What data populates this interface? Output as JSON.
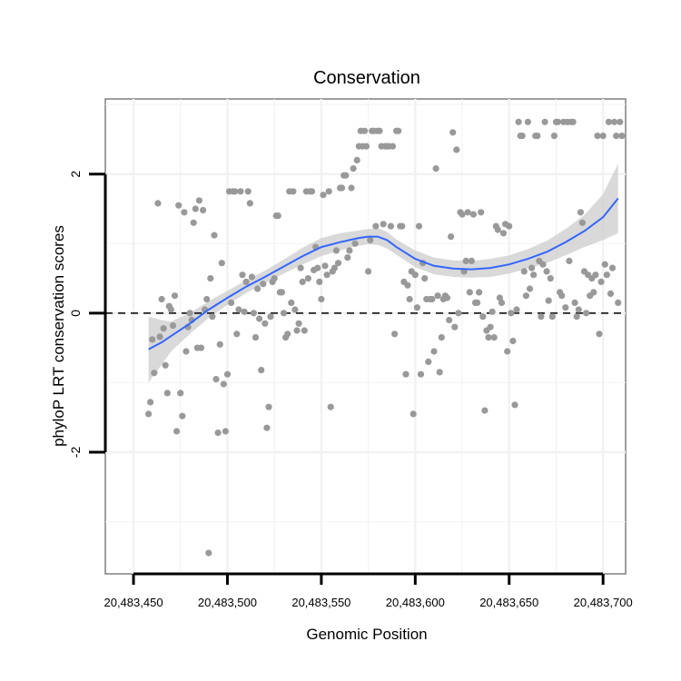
{
  "chart_data": {
    "type": "scatter",
    "title": "Conservation",
    "xlabel": "Genomic Position",
    "ylabel": "phyloP LRT conservation scores",
    "xlim": [
      20483435,
      20483712
    ],
    "ylim": [
      -3.75,
      3.08
    ],
    "x_ticks": [
      20483450,
      20483500,
      20483550,
      20483600,
      20483650,
      20483700
    ],
    "x_tick_labels": [
      "20,483,450",
      "20,483,500",
      "20,483,550",
      "20,483,600",
      "20,483,650",
      "20,483,700"
    ],
    "y_ticks": [
      -2,
      0,
      2
    ],
    "y_tick_labels": [
      "-2",
      "0",
      "2"
    ],
    "grid": true,
    "reference_line": {
      "y": 0,
      "style": "dashed"
    },
    "colors": {
      "points": "#999999",
      "smooth": "#3366ff",
      "band": "#cccccc",
      "panel_border": "#7f7f7f",
      "grid": "#f2f2f2"
    },
    "points": [
      [
        20483458,
        -1.45
      ],
      [
        20483459,
        -1.28
      ],
      [
        20483460,
        -0.38
      ],
      [
        20483461,
        -0.86
      ],
      [
        20483463,
        1.58
      ],
      [
        20483464,
        -0.34
      ],
      [
        20483465,
        0.2
      ],
      [
        20483466,
        -0.22
      ],
      [
        20483467,
        -0.75
      ],
      [
        20483468,
        -1.15
      ],
      [
        20483469,
        0.1
      ],
      [
        20483470,
        0.05
      ],
      [
        20483471,
        -0.18
      ],
      [
        20483472,
        0.25
      ],
      [
        20483473,
        -1.7
      ],
      [
        20483474,
        1.55
      ],
      [
        20483475,
        -1.15
      ],
      [
        20483476,
        -1.48
      ],
      [
        20483477,
        1.45
      ],
      [
        20483478,
        -0.55
      ],
      [
        20483479,
        -0.2
      ],
      [
        20483480,
        0.0
      ],
      [
        20483481,
        -0.1
      ],
      [
        20483482,
        1.3
      ],
      [
        20483483,
        1.5
      ],
      [
        20483484,
        -0.5
      ],
      [
        20483485,
        1.62
      ],
      [
        20483486,
        -0.5
      ],
      [
        20483487,
        1.48
      ],
      [
        20483488,
        0.05
      ],
      [
        20483489,
        0.2
      ],
      [
        20483490,
        -3.45
      ],
      [
        20483491,
        0.5
      ],
      [
        20483492,
        -0.05
      ],
      [
        20483493,
        1.12
      ],
      [
        20483494,
        -0.95
      ],
      [
        20483495,
        -1.72
      ],
      [
        20483496,
        -0.45
      ],
      [
        20483497,
        0.72
      ],
      [
        20483498,
        -1.02
      ],
      [
        20483499,
        -1.7
      ],
      [
        20483500,
        -0.88
      ],
      [
        20483501,
        1.75
      ],
      [
        20483502,
        0.15
      ],
      [
        20483503,
        1.75
      ],
      [
        20483504,
        1.75
      ],
      [
        20483505,
        -0.3
      ],
      [
        20483506,
        0.05
      ],
      [
        20483507,
        1.75
      ],
      [
        20483508,
        0.55
      ],
      [
        20483509,
        0.02
      ],
      [
        20483510,
        0.45
      ],
      [
        20483511,
        1.75
      ],
      [
        20483512,
        1.58
      ],
      [
        20483513,
        0.52
      ],
      [
        20483514,
        0.0
      ],
      [
        20483515,
        -0.35
      ],
      [
        20483516,
        0.35
      ],
      [
        20483517,
        -0.08
      ],
      [
        20483518,
        -0.82
      ],
      [
        20483519,
        0.42
      ],
      [
        20483520,
        -0.15
      ],
      [
        20483521,
        -1.65
      ],
      [
        20483522,
        -1.35
      ],
      [
        20483523,
        -0.05
      ],
      [
        20483524,
        0.45
      ],
      [
        20483525,
        0.5
      ],
      [
        20483526,
        1.4
      ],
      [
        20483527,
        1.4
      ],
      [
        20483528,
        0.3
      ],
      [
        20483529,
        0.3
      ],
      [
        20483530,
        0.0
      ],
      [
        20483531,
        -0.35
      ],
      [
        20483532,
        -0.3
      ],
      [
        20483533,
        1.75
      ],
      [
        20483534,
        0.15
      ],
      [
        20483535,
        1.75
      ],
      [
        20483536,
        0.05
      ],
      [
        20483537,
        -0.25
      ],
      [
        20483538,
        -0.15
      ],
      [
        20483539,
        0.65
      ],
      [
        20483540,
        0.45
      ],
      [
        20483541,
        -0.25
      ],
      [
        20483542,
        1.75
      ],
      [
        20483543,
        0.5
      ],
      [
        20483544,
        1.75
      ],
      [
        20483545,
        1.75
      ],
      [
        20483546,
        0.62
      ],
      [
        20483547,
        0.95
      ],
      [
        20483548,
        0.65
      ],
      [
        20483549,
        0.45
      ],
      [
        20483550,
        0.2
      ],
      [
        20483551,
        1.7
      ],
      [
        20483552,
        0.68
      ],
      [
        20483553,
        0.55
      ],
      [
        20483554,
        1.75
      ],
      [
        20483555,
        -1.35
      ],
      [
        20483556,
        0.6
      ],
      [
        20483557,
        0.65
      ],
      [
        20483558,
        0.9
      ],
      [
        20483559,
        0.72
      ],
      [
        20483560,
        1.8
      ],
      [
        20483561,
        1.8
      ],
      [
        20483562,
        1.98
      ],
      [
        20483563,
        1.98
      ],
      [
        20483564,
        0.8
      ],
      [
        20483565,
        0.9
      ],
      [
        20483566,
        1.8
      ],
      [
        20483567,
        2.08
      ],
      [
        20483568,
        1.0
      ],
      [
        20483569,
        2.2
      ],
      [
        20483570,
        2.4
      ],
      [
        20483571,
        2.62
      ],
      [
        20483572,
        2.4
      ],
      [
        20483573,
        2.62
      ],
      [
        20483574,
        2.4
      ],
      [
        20483575,
        0.6
      ],
      [
        20483576,
        1.05
      ],
      [
        20483577,
        2.62
      ],
      [
        20483578,
        2.62
      ],
      [
        20483579,
        1.25
      ],
      [
        20483580,
        2.62
      ],
      [
        20483581,
        2.62
      ],
      [
        20483582,
        2.4
      ],
      [
        20483583,
        1.28
      ],
      [
        20483584,
        2.4
      ],
      [
        20483585,
        2.4
      ],
      [
        20483586,
        2.4
      ],
      [
        20483587,
        1.25
      ],
      [
        20483588,
        2.4
      ],
      [
        20483589,
        -0.3
      ],
      [
        20483590,
        2.62
      ],
      [
        20483591,
        2.62
      ],
      [
        20483592,
        1.25
      ],
      [
        20483593,
        1.25
      ],
      [
        20483594,
        0.45
      ],
      [
        20483595,
        -0.88
      ],
      [
        20483596,
        0.4
      ],
      [
        20483597,
        0.2
      ],
      [
        20483598,
        0.6
      ],
      [
        20483599,
        -1.45
      ],
      [
        20483600,
        0.55
      ],
      [
        20483601,
        0.08
      ],
      [
        20483602,
        1.25
      ],
      [
        20483603,
        -0.88
      ],
      [
        20483604,
        0.72
      ],
      [
        20483605,
        0.5
      ],
      [
        20483606,
        0.2
      ],
      [
        20483607,
        -0.7
      ],
      [
        20483608,
        0.2
      ],
      [
        20483609,
        0.2
      ],
      [
        20483610,
        -0.55
      ],
      [
        20483611,
        2.08
      ],
      [
        20483612,
        0.25
      ],
      [
        20483613,
        -0.85
      ],
      [
        20483614,
        -0.35
      ],
      [
        20483615,
        0.2
      ],
      [
        20483616,
        0.25
      ],
      [
        20483617,
        0.22
      ],
      [
        20483618,
        -0.1
      ],
      [
        20483619,
        1.1
      ],
      [
        20483620,
        2.6
      ],
      [
        20483621,
        -0.2
      ],
      [
        20483622,
        2.35
      ],
      [
        20483623,
        0.0
      ],
      [
        20483624,
        1.45
      ],
      [
        20483625,
        1.42
      ],
      [
        20483626,
        0.6
      ],
      [
        20483627,
        0.75
      ],
      [
        20483628,
        1.45
      ],
      [
        20483629,
        0.3
      ],
      [
        20483630,
        0.75
      ],
      [
        20483631,
        1.42
      ],
      [
        20483632,
        0.15
      ],
      [
        20483633,
        0.15
      ],
      [
        20483634,
        0.3
      ],
      [
        20483635,
        1.45
      ],
      [
        20483636,
        -0.05
      ],
      [
        20483637,
        -1.4
      ],
      [
        20483638,
        -0.25
      ],
      [
        20483639,
        -0.35
      ],
      [
        20483640,
        -0.2
      ],
      [
        20483641,
        0.02
      ],
      [
        20483642,
        -0.35
      ],
      [
        20483643,
        1.25
      ],
      [
        20483644,
        1.2
      ],
      [
        20483645,
        0.22
      ],
      [
        20483646,
        0.15
      ],
      [
        20483647,
        1.15
      ],
      [
        20483648,
        1.28
      ],
      [
        20483649,
        -0.55
      ],
      [
        20483650,
        1.25
      ],
      [
        20483651,
        0.0
      ],
      [
        20483652,
        -0.4
      ],
      [
        20483653,
        -1.32
      ],
      [
        20483654,
        0.05
      ],
      [
        20483655,
        2.75
      ],
      [
        20483656,
        2.55
      ],
      [
        20483657,
        2.55
      ],
      [
        20483658,
        0.6
      ],
      [
        20483659,
        0.25
      ],
      [
        20483660,
        2.75
      ],
      [
        20483661,
        0.35
      ],
      [
        20483662,
        0.65
      ],
      [
        20483663,
        0.55
      ],
      [
        20483664,
        2.55
      ],
      [
        20483665,
        2.55
      ],
      [
        20483666,
        0.75
      ],
      [
        20483667,
        -0.05
      ],
      [
        20483668,
        0.7
      ],
      [
        20483669,
        2.75
      ],
      [
        20483670,
        0.6
      ],
      [
        20483671,
        0.18
      ],
      [
        20483672,
        0.5
      ],
      [
        20483673,
        -0.05
      ],
      [
        20483674,
        2.55
      ],
      [
        20483675,
        2.75
      ],
      [
        20483676,
        2.75
      ],
      [
        20483677,
        0.3
      ],
      [
        20483678,
        0.25
      ],
      [
        20483679,
        2.75
      ],
      [
        20483680,
        0.08
      ],
      [
        20483681,
        2.75
      ],
      [
        20483682,
        0.75
      ],
      [
        20483683,
        2.75
      ],
      [
        20483684,
        2.75
      ],
      [
        20483685,
        0.15
      ],
      [
        20483686,
        -0.05
      ],
      [
        20483687,
        0.05
      ],
      [
        20483688,
        1.45
      ],
      [
        20483689,
        1.3
      ],
      [
        20483690,
        0.6
      ],
      [
        20483691,
        0.0
      ],
      [
        20483692,
        0.55
      ],
      [
        20483693,
        0.25
      ],
      [
        20483694,
        0.5
      ],
      [
        20483695,
        0.3
      ],
      [
        20483696,
        0.55
      ],
      [
        20483697,
        2.55
      ],
      [
        20483698,
        -0.3
      ],
      [
        20483699,
        0.45
      ],
      [
        20483700,
        2.55
      ],
      [
        20483701,
        0.7
      ],
      [
        20483702,
        0.55
      ],
      [
        20483703,
        2.75
      ],
      [
        20483704,
        0.28
      ],
      [
        20483705,
        0.65
      ],
      [
        20483706,
        2.75
      ],
      [
        20483707,
        2.55
      ],
      [
        20483708,
        0.15
      ],
      [
        20483709,
        2.75
      ],
      [
        20483710,
        2.55
      ]
    ],
    "smooth_line": {
      "x": [
        20483458,
        20483465,
        20483470,
        20483480,
        20483490,
        20483500,
        20483510,
        20483520,
        20483530,
        20483540,
        20483550,
        20483560,
        20483565,
        20483570,
        20483575,
        20483580,
        20483585,
        20483590,
        20483600,
        20483610,
        20483620,
        20483630,
        20483640,
        20483650,
        20483660,
        20483670,
        20483680,
        20483690,
        20483700,
        20483708
      ],
      "y": [
        -0.52,
        -0.42,
        -0.33,
        -0.15,
        0.05,
        0.22,
        0.38,
        0.52,
        0.67,
        0.82,
        0.95,
        1.02,
        1.05,
        1.08,
        1.1,
        1.1,
        1.05,
        0.95,
        0.78,
        0.68,
        0.64,
        0.63,
        0.65,
        0.7,
        0.78,
        0.88,
        1.02,
        1.18,
        1.38,
        1.65
      ]
    },
    "smooth_band": {
      "lower": [
        -1.0,
        -0.74,
        -0.55,
        -0.3,
        -0.07,
        0.12,
        0.29,
        0.43,
        0.57,
        0.7,
        0.82,
        0.9,
        0.94,
        0.97,
        0.99,
        0.98,
        0.93,
        0.84,
        0.66,
        0.56,
        0.52,
        0.51,
        0.52,
        0.57,
        0.64,
        0.72,
        0.83,
        0.95,
        1.05,
        1.15
      ],
      "upper": [
        -0.05,
        -0.1,
        -0.12,
        0.0,
        0.17,
        0.32,
        0.47,
        0.61,
        0.77,
        0.94,
        1.08,
        1.15,
        1.17,
        1.19,
        1.21,
        1.22,
        1.17,
        1.06,
        0.9,
        0.8,
        0.76,
        0.75,
        0.78,
        0.83,
        0.92,
        1.04,
        1.21,
        1.41,
        1.71,
        2.15
      ]
    }
  }
}
